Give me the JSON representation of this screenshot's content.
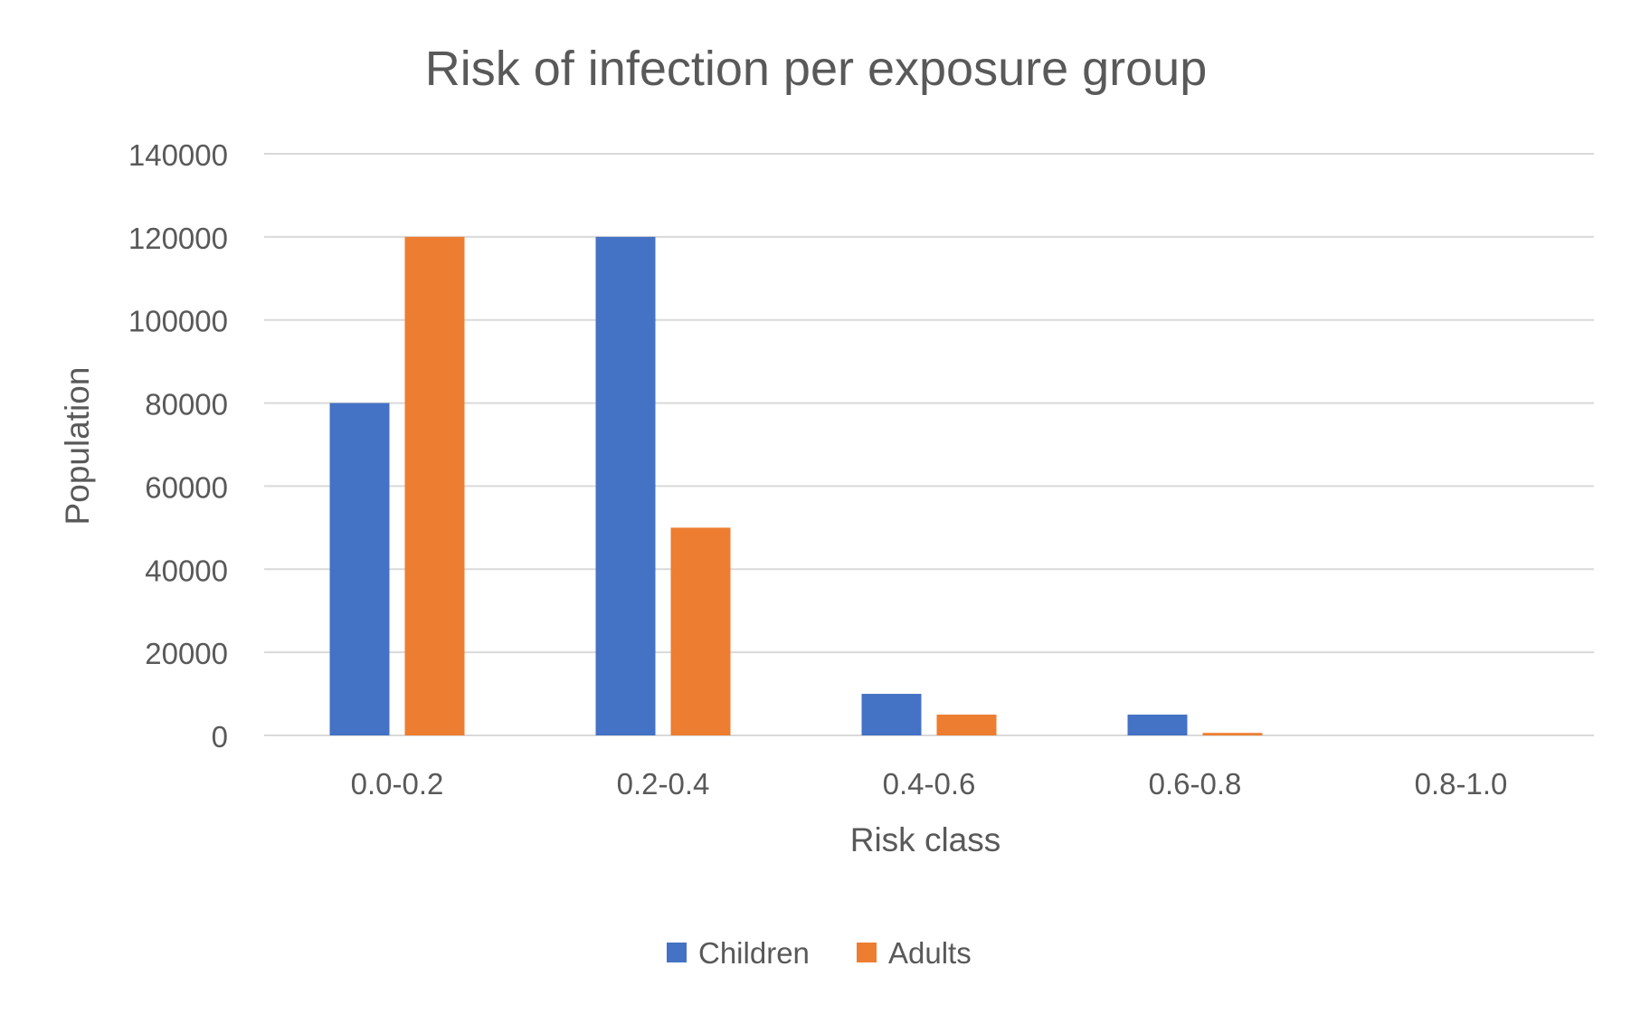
{
  "chart_data": {
    "type": "bar",
    "title": "Risk of infection per exposure group",
    "xlabel": "Risk class",
    "ylabel": "Population",
    "categories": [
      "0.0-0.2",
      "0.2-0.4",
      "0.4-0.6",
      "0.6-0.8",
      "0.8-1.0"
    ],
    "series": [
      {
        "name": "Children",
        "color": "#4472C4",
        "values": [
          80000,
          120000,
          10000,
          5000,
          0
        ]
      },
      {
        "name": "Adults",
        "color": "#ED7D31",
        "values": [
          120000,
          50000,
          5000,
          600,
          0
        ]
      }
    ],
    "ylim": [
      0,
      140000
    ],
    "yticks": [
      0,
      20000,
      40000,
      60000,
      80000,
      100000,
      120000,
      140000
    ],
    "grid": true,
    "legend_position": "bottom",
    "colors": {
      "gridline": "#D9D9D9",
      "text": "#595959"
    }
  }
}
